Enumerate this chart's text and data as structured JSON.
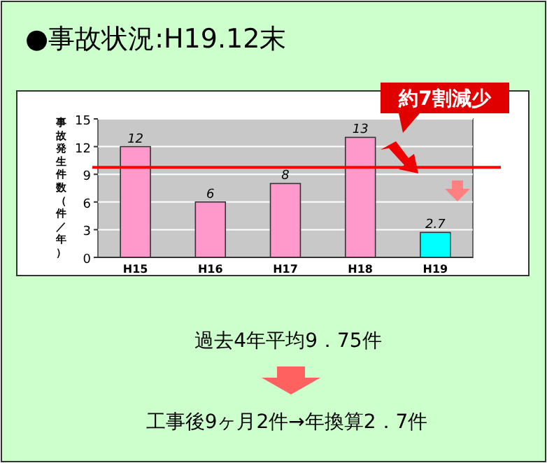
{
  "chart_data": {
    "type": "bar",
    "title": "●事故状況:H19.12末",
    "ylabel": "事故発生件数（件／年）",
    "categories": [
      "H15",
      "H16",
      "H17",
      "H18",
      "H19"
    ],
    "values": [
      12,
      6,
      8,
      13,
      2.7
    ],
    "colors": [
      "#ff99cc",
      "#ff99cc",
      "#ff99cc",
      "#ff99cc",
      "#00ffff"
    ],
    "ylim": [
      0,
      15
    ],
    "yticks": [
      0,
      3,
      6,
      9,
      12,
      15
    ],
    "grid": "y",
    "data_labels": true,
    "ref_lines": [
      {
        "axis": "y",
        "value": 9.75,
        "color": "#ff0000"
      }
    ],
    "annotations": [
      "約7割減少",
      "過去4年平均9．75件",
      "工事後9ヶ月2件→年換算2．7件"
    ]
  }
}
